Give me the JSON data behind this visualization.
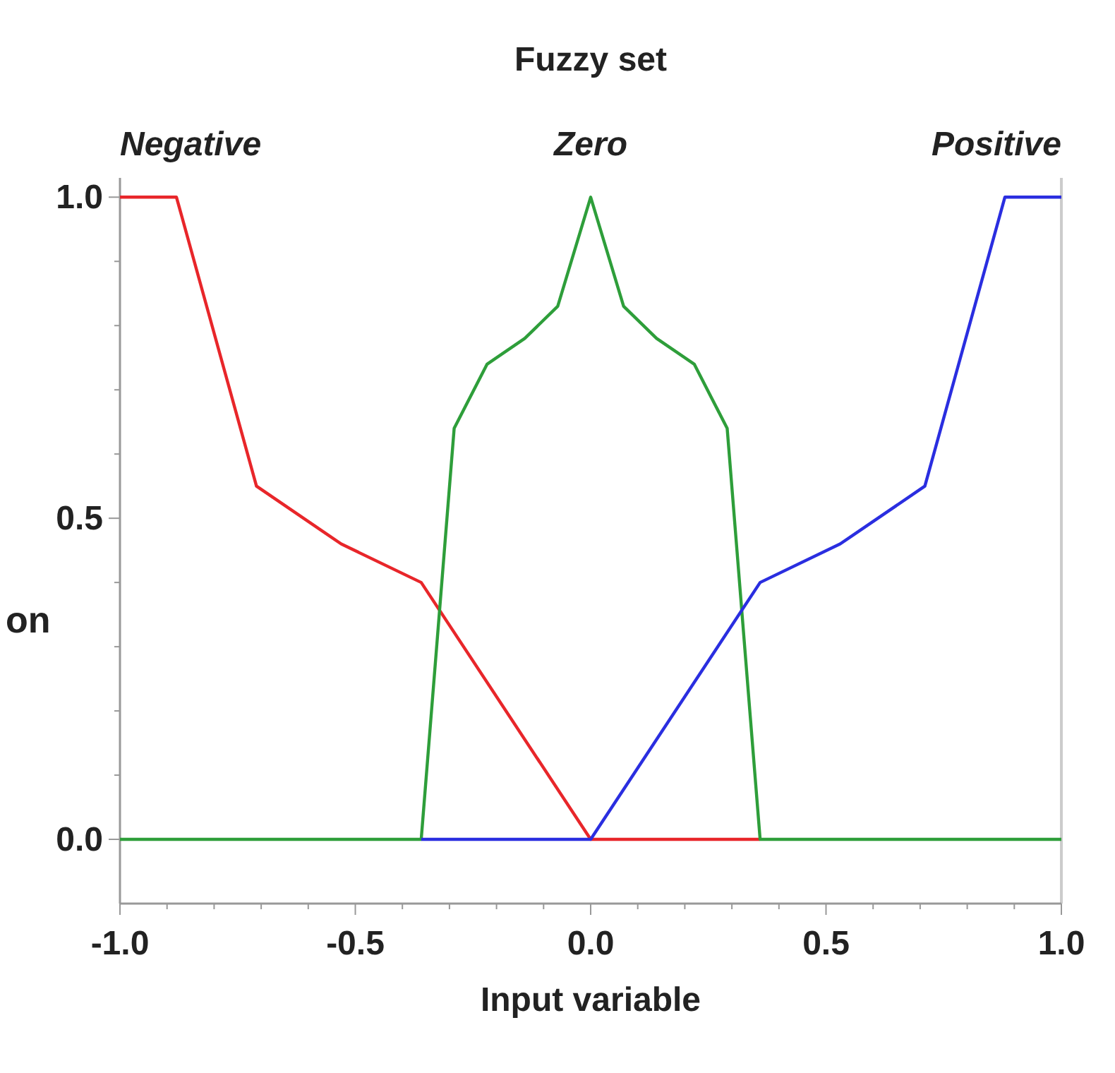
{
  "chart_data": {
    "type": "line",
    "title": "Fuzzy set",
    "xlabel": "Input variable",
    "ylabel": "on",
    "xlim": [
      -1,
      1
    ],
    "ylim": [
      -0.1,
      1.03
    ],
    "xticks": [
      {
        "value": -1,
        "label": "-1.0"
      },
      {
        "value": -0.9,
        "label": null
      },
      {
        "value": -0.8,
        "label": null
      },
      {
        "value": -0.7,
        "label": null
      },
      {
        "value": -0.6,
        "label": null
      },
      {
        "value": -0.5,
        "label": "-0.5"
      },
      {
        "value": -0.4,
        "label": null
      },
      {
        "value": -0.3,
        "label": null
      },
      {
        "value": -0.2,
        "label": null
      },
      {
        "value": -0.1,
        "label": null
      },
      {
        "value": 0,
        "label": "0.0"
      },
      {
        "value": 0.1,
        "label": null
      },
      {
        "value": 0.2,
        "label": null
      },
      {
        "value": 0.3,
        "label": null
      },
      {
        "value": 0.4,
        "label": null
      },
      {
        "value": 0.5,
        "label": "0.5"
      },
      {
        "value": 0.6,
        "label": null
      },
      {
        "value": 0.7,
        "label": null
      },
      {
        "value": 0.8,
        "label": null
      },
      {
        "value": 0.9,
        "label": null
      },
      {
        "value": 1,
        "label": "1.0"
      }
    ],
    "yticks": [
      {
        "value": 0,
        "label": "0.0"
      },
      {
        "value": 0.1,
        "label": null
      },
      {
        "value": 0.2,
        "label": null
      },
      {
        "value": 0.3,
        "label": null
      },
      {
        "value": 0.4,
        "label": null
      },
      {
        "value": 0.5,
        "label": "0.5"
      },
      {
        "value": 0.6,
        "label": null
      },
      {
        "value": 0.7,
        "label": null
      },
      {
        "value": 0.8,
        "label": null
      },
      {
        "value": 0.9,
        "label": null
      },
      {
        "value": 1,
        "label": "1.0"
      }
    ],
    "grid": false,
    "marker": "none",
    "line_style": "solid",
    "series": [
      {
        "name": "Negative",
        "color": "#e8262a",
        "x": [
          -1,
          -0.88,
          -0.71,
          -0.53,
          -0.36,
          0,
          0.36
        ],
        "values": [
          1,
          1,
          0.55,
          0.46,
          0.4,
          0,
          0
        ]
      },
      {
        "name": "Zero",
        "color": "#2e9e3a",
        "x": [
          -1,
          -0.36,
          -0.29,
          -0.22,
          -0.14,
          -0.07,
          0,
          0.07,
          0.14,
          0.22,
          0.29,
          0.36,
          1
        ],
        "values": [
          0,
          0,
          0.64,
          0.74,
          0.78,
          0.83,
          1,
          0.83,
          0.78,
          0.74,
          0.64,
          0,
          0
        ]
      },
      {
        "name": "Positive",
        "color": "#2a2ee0",
        "x": [
          -0.36,
          0,
          0.36,
          0.53,
          0.71,
          0.88,
          1
        ],
        "values": [
          0,
          0,
          0.4,
          0.46,
          0.55,
          1,
          1
        ]
      }
    ]
  }
}
